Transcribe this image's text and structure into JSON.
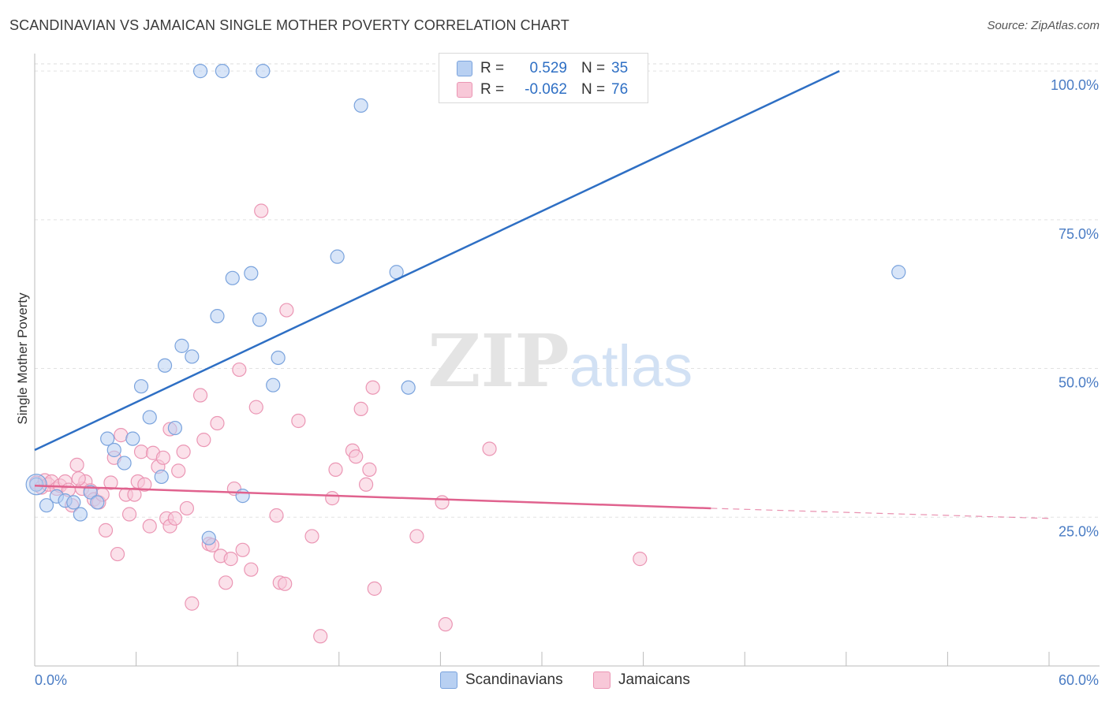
{
  "title": "SCANDINAVIAN VS JAMAICAN SINGLE MOTHER POVERTY CORRELATION CHART",
  "source": "Source: ZipAtlas.com",
  "watermark": {
    "zip": "ZIP",
    "atlas": "atlas"
  },
  "legend": {
    "rows": [
      {
        "r_label": "R =",
        "r_value": "0.529",
        "n_label": "N =",
        "n_value": "35"
      },
      {
        "r_label": "R =",
        "r_value": "-0.062",
        "n_label": "N =",
        "n_value": "76"
      }
    ]
  },
  "bottom_legend": {
    "scandinavians": "Scandinavians",
    "jamaicans": "Jamaicans"
  },
  "colors": {
    "blue_fill": "#b8d0f2",
    "blue_stroke": "#7aa3dd",
    "blue_line": "#2e6fc4",
    "pink_fill": "#f8c8d8",
    "pink_stroke": "#eb96b4",
    "pink_line": "#e0628e"
  },
  "chart_data": {
    "type": "scatter",
    "title": "SCANDINAVIAN VS JAMAICAN SINGLE MOTHER POVERTY CORRELATION CHART",
    "xlabel": "",
    "ylabel": "Single Mother Poverty",
    "xlim": [
      0,
      60
    ],
    "ylim": [
      0,
      102.4
    ],
    "x_tick_labels": [
      "0.0%",
      "60.0%"
    ],
    "y_tick_labels": [
      "100.0%",
      "75.0%",
      "50.0%",
      "25.0%"
    ],
    "y_ticks": [
      100,
      75,
      50,
      25
    ],
    "grid": true,
    "series": [
      {
        "name": "Scandinavians",
        "points": [
          [
            0.1,
            30.5
          ],
          [
            0.7,
            27.0
          ],
          [
            1.3,
            28.5
          ],
          [
            1.8,
            27.8
          ],
          [
            2.3,
            27.5
          ],
          [
            2.7,
            25.5
          ],
          [
            3.3,
            29.2
          ],
          [
            3.7,
            27.5
          ],
          [
            4.3,
            38.2
          ],
          [
            4.7,
            36.3
          ],
          [
            5.3,
            34.1
          ],
          [
            5.8,
            38.2
          ],
          [
            6.3,
            47.0
          ],
          [
            6.8,
            41.8
          ],
          [
            7.5,
            31.8
          ],
          [
            7.7,
            50.5
          ],
          [
            8.3,
            40.0
          ],
          [
            8.7,
            53.8
          ],
          [
            9.3,
            52.0
          ],
          [
            9.8,
            100.0
          ],
          [
            10.3,
            21.5
          ],
          [
            10.8,
            58.8
          ],
          [
            11.1,
            100.0
          ],
          [
            11.7,
            65.2
          ],
          [
            12.3,
            28.6
          ],
          [
            12.8,
            66.0
          ],
          [
            13.3,
            58.2
          ],
          [
            13.5,
            100.0
          ],
          [
            14.1,
            47.2
          ],
          [
            14.4,
            51.8
          ],
          [
            17.9,
            68.8
          ],
          [
            19.3,
            94.2
          ],
          [
            21.4,
            66.2
          ],
          [
            22.1,
            46.8
          ],
          [
            51.1,
            66.2
          ]
        ]
      },
      {
        "name": "Jamaicans",
        "points": [
          [
            0.1,
            30.8
          ],
          [
            0.4,
            30.0
          ],
          [
            0.6,
            31.2
          ],
          [
            0.8,
            30.5
          ],
          [
            1.0,
            31.0
          ],
          [
            1.3,
            29.8
          ],
          [
            1.5,
            30.3
          ],
          [
            1.8,
            31.0
          ],
          [
            2.0,
            29.6
          ],
          [
            2.2,
            27.0
          ],
          [
            2.5,
            33.8
          ],
          [
            2.8,
            29.8
          ],
          [
            3.0,
            31.0
          ],
          [
            3.3,
            29.5
          ],
          [
            3.5,
            28.0
          ],
          [
            3.8,
            27.5
          ],
          [
            4.0,
            28.8
          ],
          [
            4.2,
            22.8
          ],
          [
            4.5,
            30.8
          ],
          [
            4.7,
            35.0
          ],
          [
            4.9,
            18.8
          ],
          [
            5.1,
            38.8
          ],
          [
            5.4,
            28.8
          ],
          [
            5.6,
            25.5
          ],
          [
            5.9,
            28.8
          ],
          [
            6.1,
            31.0
          ],
          [
            6.3,
            36.0
          ],
          [
            6.5,
            30.5
          ],
          [
            6.8,
            23.5
          ],
          [
            7.0,
            35.8
          ],
          [
            7.3,
            33.5
          ],
          [
            7.6,
            35.0
          ],
          [
            7.8,
            24.8
          ],
          [
            8.0,
            23.5
          ],
          [
            8.3,
            24.8
          ],
          [
            8.5,
            32.8
          ],
          [
            8.8,
            36.0
          ],
          [
            9.0,
            26.5
          ],
          [
            9.3,
            10.5
          ],
          [
            9.8,
            45.5
          ],
          [
            10.0,
            38.0
          ],
          [
            10.3,
            20.5
          ],
          [
            10.5,
            20.3
          ],
          [
            10.8,
            40.8
          ],
          [
            11.0,
            18.5
          ],
          [
            11.3,
            14.0
          ],
          [
            11.6,
            18.0
          ],
          [
            11.8,
            29.8
          ],
          [
            12.1,
            49.8
          ],
          [
            12.3,
            19.5
          ],
          [
            12.8,
            16.2
          ],
          [
            13.1,
            43.5
          ],
          [
            13.4,
            76.5
          ],
          [
            14.3,
            25.3
          ],
          [
            14.5,
            14.0
          ],
          [
            14.8,
            13.8
          ],
          [
            14.9,
            59.8
          ],
          [
            15.6,
            41.2
          ],
          [
            16.4,
            21.8
          ],
          [
            16.9,
            5.0
          ],
          [
            17.6,
            28.2
          ],
          [
            17.8,
            33.0
          ],
          [
            18.8,
            36.2
          ],
          [
            19.0,
            35.2
          ],
          [
            19.3,
            43.2
          ],
          [
            19.6,
            30.5
          ],
          [
            19.8,
            33.0
          ],
          [
            20.0,
            46.8
          ],
          [
            20.1,
            13.0
          ],
          [
            22.6,
            21.8
          ],
          [
            24.1,
            27.5
          ],
          [
            24.3,
            7.0
          ],
          [
            26.9,
            36.5
          ],
          [
            35.8,
            18.0
          ],
          [
            2.6,
            31.5
          ],
          [
            8.0,
            39.8
          ]
        ]
      }
    ],
    "trendlines": [
      {
        "series": "Scandinavians",
        "from": [
          0,
          36.3
        ],
        "to": [
          47.6,
          100.0
        ]
      },
      {
        "series": "Jamaicans",
        "from": [
          0,
          30.3
        ],
        "to": [
          40.0,
          26.5
        ],
        "dashed_to": [
          60.0,
          24.8
        ]
      }
    ]
  }
}
